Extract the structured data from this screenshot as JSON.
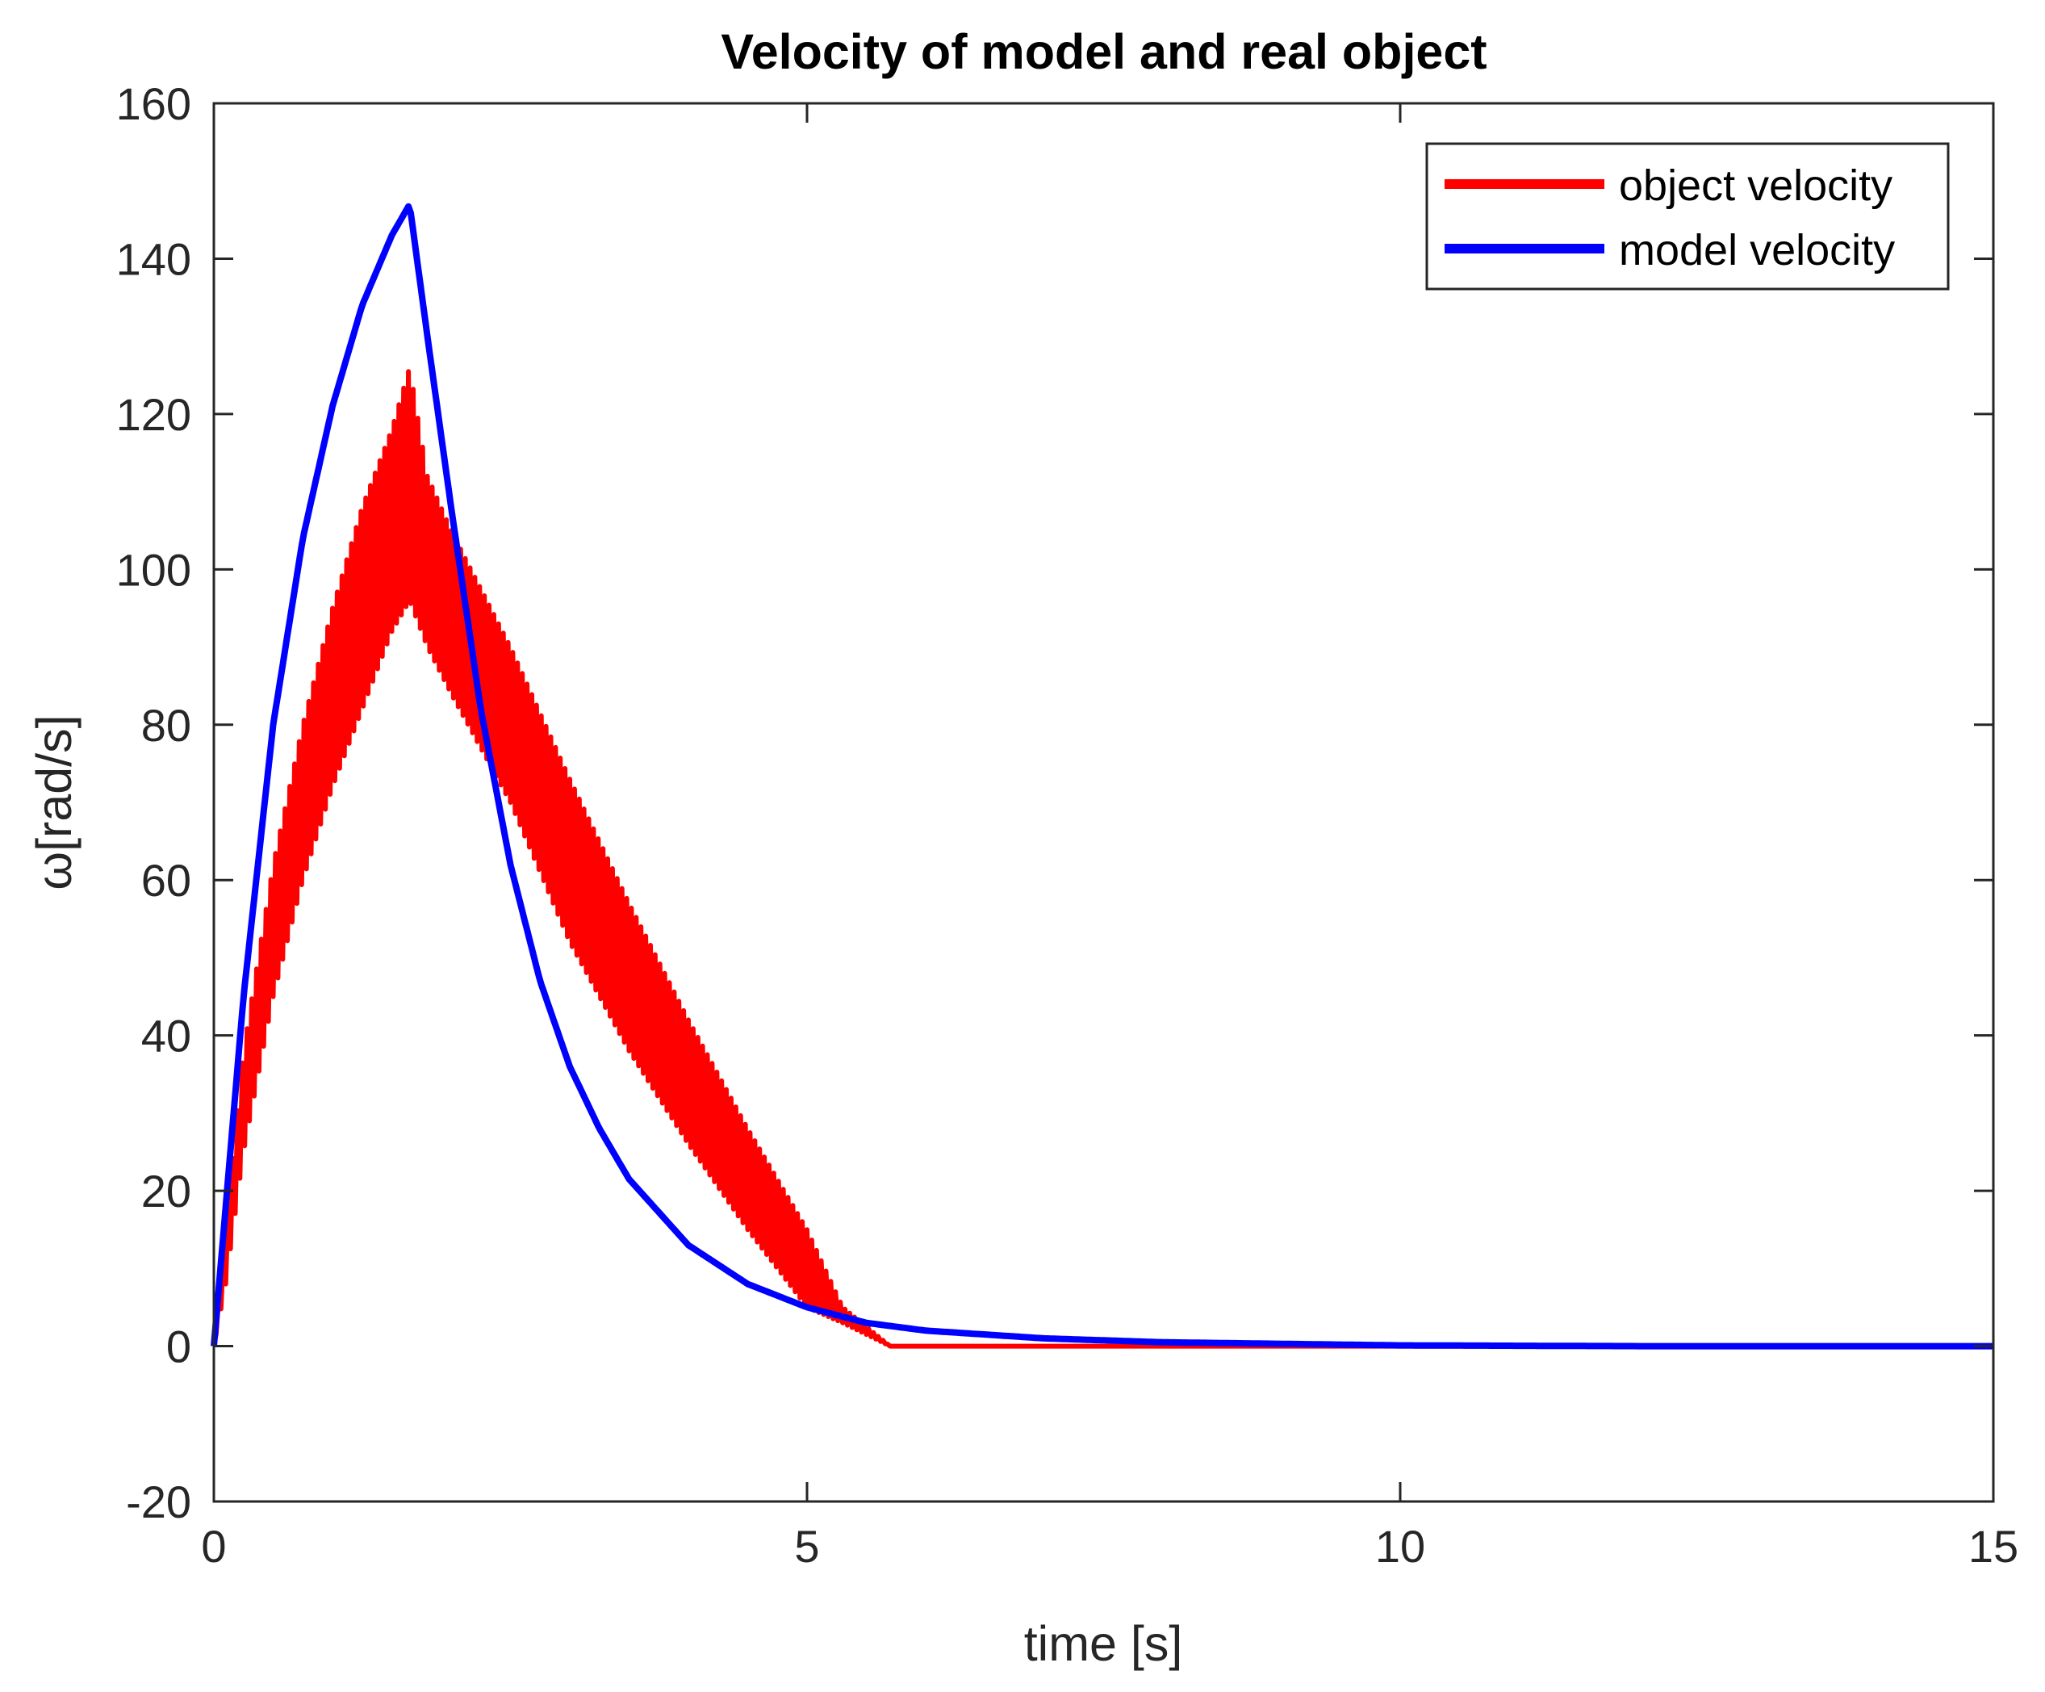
{
  "chart_data": {
    "type": "line",
    "title": "Velocity of model and real object",
    "xlabel": "time [s]",
    "ylabel": "ω[rad/s]",
    "xlim": [
      0,
      15
    ],
    "ylim": [
      -20,
      160
    ],
    "x_ticks": [
      0,
      5,
      10,
      15
    ],
    "y_ticks": [
      -20,
      0,
      20,
      40,
      60,
      80,
      100,
      120,
      140,
      160
    ],
    "x_tick_labels": [
      "0",
      "5",
      "10",
      "15"
    ],
    "y_tick_labels": [
      "-20",
      "0",
      "20",
      "40",
      "60",
      "80",
      "100",
      "120",
      "140",
      "160"
    ],
    "grid": false,
    "legend": "top-right",
    "series": [
      {
        "name": "object velocity",
        "color": "#ff0000",
        "style": "oscillating band",
        "x": [
          0,
          0.1,
          0.25,
          0.5,
          0.75,
          1.0,
          1.25,
          1.5,
          1.65,
          1.8,
          2.0,
          2.5,
          3.0,
          3.5,
          4.0,
          4.5,
          5.0,
          5.3,
          5.7,
          6.0,
          8.0,
          10.0,
          15.0
        ],
        "y_upper": [
          0,
          15,
          38,
          62,
          80,
          95,
          108,
          118,
          126,
          112,
          105,
          90,
          73,
          57,
          42,
          28,
          15,
          5,
          0,
          0,
          0,
          0,
          0
        ],
        "y_lower": [
          0,
          8,
          25,
          45,
          60,
          72,
          82,
          92,
          96,
          90,
          84,
          70,
          52,
          38,
          26,
          15,
          5,
          3,
          0,
          0,
          0,
          0,
          0
        ]
      },
      {
        "name": "model velocity",
        "color": "#0000ff",
        "x": [
          0,
          0.25,
          0.5,
          0.75,
          1.0,
          1.25,
          1.5,
          1.65,
          1.8,
          2.0,
          2.25,
          2.5,
          2.75,
          3.0,
          3.25,
          3.5,
          4.0,
          4.5,
          5.0,
          5.5,
          6.0,
          7.0,
          8.0,
          10.0,
          12.0,
          15.0
        ],
        "y": [
          0,
          45,
          80,
          104,
          121,
          134,
          143,
          147,
          130,
          108,
          82,
          62,
          47,
          36,
          28,
          21.5,
          13,
          8,
          5,
          3,
          2,
          1,
          0.5,
          0.1,
          0,
          0
        ]
      }
    ],
    "colors": {
      "axes": "#262626",
      "background": "#ffffff"
    }
  }
}
